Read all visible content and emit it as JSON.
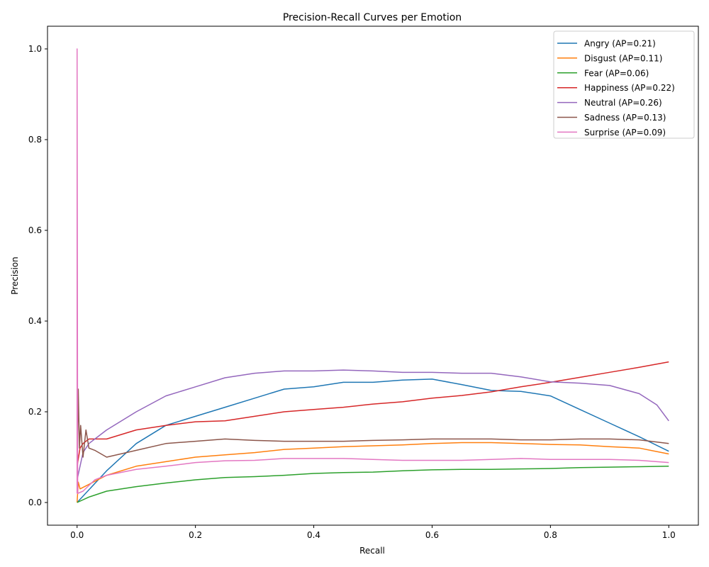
{
  "chart_data": {
    "type": "line",
    "title": "Precision-Recall Curves per Emotion",
    "xlabel": "Recall",
    "ylabel": "Precision",
    "xlim": [
      -0.05,
      1.05
    ],
    "ylim": [
      -0.05,
      1.05
    ],
    "xticks": [
      0.0,
      0.2,
      0.4,
      0.6,
      0.8,
      1.0
    ],
    "xtick_labels": [
      "0.0",
      "0.2",
      "0.4",
      "0.6",
      "0.8",
      "1.0"
    ],
    "yticks": [
      0.0,
      0.2,
      0.4,
      0.6,
      0.8,
      1.0
    ],
    "ytick_labels": [
      "0.0",
      "0.2",
      "0.4",
      "0.6",
      "0.8",
      "1.0"
    ],
    "grid": false,
    "legend_position": "top-right",
    "series": [
      {
        "name": "Angry (AP=0.21)",
        "color": "#1f77b4",
        "points": [
          [
            0.0,
            0.0
          ],
          [
            0.05,
            0.07
          ],
          [
            0.1,
            0.13
          ],
          [
            0.15,
            0.17
          ],
          [
            0.2,
            0.19
          ],
          [
            0.25,
            0.21
          ],
          [
            0.3,
            0.23
          ],
          [
            0.35,
            0.25
          ],
          [
            0.4,
            0.255
          ],
          [
            0.45,
            0.265
          ],
          [
            0.5,
            0.265
          ],
          [
            0.55,
            0.27
          ],
          [
            0.6,
            0.272
          ],
          [
            0.65,
            0.26
          ],
          [
            0.7,
            0.247
          ],
          [
            0.75,
            0.245
          ],
          [
            0.8,
            0.235
          ],
          [
            0.85,
            0.205
          ],
          [
            0.9,
            0.175
          ],
          [
            0.95,
            0.145
          ],
          [
            1.0,
            0.113
          ]
        ]
      },
      {
        "name": "Disgust (AP=0.11)",
        "color": "#ff7f0e",
        "points": [
          [
            0.0,
            0.0
          ],
          [
            0.002,
            0.045
          ],
          [
            0.005,
            0.03
          ],
          [
            0.02,
            0.04
          ],
          [
            0.05,
            0.06
          ],
          [
            0.1,
            0.08
          ],
          [
            0.15,
            0.09
          ],
          [
            0.2,
            0.1
          ],
          [
            0.25,
            0.105
          ],
          [
            0.3,
            0.11
          ],
          [
            0.35,
            0.117
          ],
          [
            0.4,
            0.12
          ],
          [
            0.45,
            0.123
          ],
          [
            0.5,
            0.125
          ],
          [
            0.55,
            0.127
          ],
          [
            0.6,
            0.13
          ],
          [
            0.65,
            0.132
          ],
          [
            0.7,
            0.132
          ],
          [
            0.75,
            0.13
          ],
          [
            0.8,
            0.128
          ],
          [
            0.85,
            0.127
          ],
          [
            0.9,
            0.123
          ],
          [
            0.95,
            0.12
          ],
          [
            1.0,
            0.107
          ]
        ]
      },
      {
        "name": "Fear (AP=0.06)",
        "color": "#2ca02c",
        "points": [
          [
            0.0,
            0.0
          ],
          [
            0.02,
            0.012
          ],
          [
            0.05,
            0.025
          ],
          [
            0.1,
            0.035
          ],
          [
            0.15,
            0.043
          ],
          [
            0.2,
            0.05
          ],
          [
            0.25,
            0.055
          ],
          [
            0.3,
            0.057
          ],
          [
            0.35,
            0.06
          ],
          [
            0.4,
            0.064
          ],
          [
            0.45,
            0.066
          ],
          [
            0.5,
            0.067
          ],
          [
            0.55,
            0.07
          ],
          [
            0.6,
            0.072
          ],
          [
            0.65,
            0.073
          ],
          [
            0.7,
            0.073
          ],
          [
            0.75,
            0.074
          ],
          [
            0.8,
            0.075
          ],
          [
            0.85,
            0.077
          ],
          [
            0.9,
            0.078
          ],
          [
            0.95,
            0.079
          ],
          [
            1.0,
            0.08
          ]
        ]
      },
      {
        "name": "Happiness (AP=0.22)",
        "color": "#d62728",
        "points": [
          [
            0.0,
            0.08
          ],
          [
            0.005,
            0.12
          ],
          [
            0.01,
            0.13
          ],
          [
            0.02,
            0.14
          ],
          [
            0.05,
            0.14
          ],
          [
            0.1,
            0.16
          ],
          [
            0.15,
            0.17
          ],
          [
            0.2,
            0.178
          ],
          [
            0.25,
            0.18
          ],
          [
            0.3,
            0.19
          ],
          [
            0.35,
            0.2
          ],
          [
            0.4,
            0.205
          ],
          [
            0.45,
            0.21
          ],
          [
            0.5,
            0.217
          ],
          [
            0.55,
            0.222
          ],
          [
            0.6,
            0.23
          ],
          [
            0.65,
            0.236
          ],
          [
            0.7,
            0.244
          ],
          [
            0.75,
            0.255
          ],
          [
            0.8,
            0.265
          ],
          [
            0.85,
            0.276
          ],
          [
            0.9,
            0.287
          ],
          [
            0.95,
            0.298
          ],
          [
            1.0,
            0.31
          ]
        ]
      },
      {
        "name": "Neutral (AP=0.26)",
        "color": "#9467bd",
        "points": [
          [
            0.0,
            0.05
          ],
          [
            0.01,
            0.11
          ],
          [
            0.02,
            0.13
          ],
          [
            0.05,
            0.16
          ],
          [
            0.1,
            0.2
          ],
          [
            0.15,
            0.235
          ],
          [
            0.2,
            0.255
          ],
          [
            0.25,
            0.275
          ],
          [
            0.3,
            0.285
          ],
          [
            0.35,
            0.29
          ],
          [
            0.4,
            0.29
          ],
          [
            0.45,
            0.292
          ],
          [
            0.5,
            0.29
          ],
          [
            0.55,
            0.287
          ],
          [
            0.6,
            0.287
          ],
          [
            0.65,
            0.285
          ],
          [
            0.7,
            0.285
          ],
          [
            0.75,
            0.277
          ],
          [
            0.8,
            0.266
          ],
          [
            0.85,
            0.263
          ],
          [
            0.9,
            0.258
          ],
          [
            0.95,
            0.24
          ],
          [
            0.98,
            0.215
          ],
          [
            1.0,
            0.18
          ]
        ]
      },
      {
        "name": "Sadness (AP=0.13)",
        "color": "#8c564b",
        "points": [
          [
            0.0,
            0.05
          ],
          [
            0.002,
            0.25
          ],
          [
            0.004,
            0.12
          ],
          [
            0.006,
            0.17
          ],
          [
            0.01,
            0.1
          ],
          [
            0.015,
            0.16
          ],
          [
            0.02,
            0.12
          ],
          [
            0.03,
            0.115
          ],
          [
            0.05,
            0.1
          ],
          [
            0.1,
            0.115
          ],
          [
            0.15,
            0.13
          ],
          [
            0.2,
            0.135
          ],
          [
            0.25,
            0.14
          ],
          [
            0.3,
            0.137
          ],
          [
            0.35,
            0.135
          ],
          [
            0.4,
            0.135
          ],
          [
            0.45,
            0.135
          ],
          [
            0.5,
            0.137
          ],
          [
            0.55,
            0.138
          ],
          [
            0.6,
            0.14
          ],
          [
            0.65,
            0.14
          ],
          [
            0.7,
            0.14
          ],
          [
            0.75,
            0.138
          ],
          [
            0.8,
            0.138
          ],
          [
            0.85,
            0.14
          ],
          [
            0.9,
            0.14
          ],
          [
            0.95,
            0.138
          ],
          [
            1.0,
            0.13
          ]
        ]
      },
      {
        "name": "Surprise (AP=0.09)",
        "color": "#e377c2",
        "points": [
          [
            0.0,
            0.02
          ],
          [
            0.0,
            1.0
          ],
          [
            0.001,
            0.02
          ],
          [
            0.01,
            0.025
          ],
          [
            0.03,
            0.05
          ],
          [
            0.05,
            0.06
          ],
          [
            0.1,
            0.073
          ],
          [
            0.15,
            0.08
          ],
          [
            0.2,
            0.088
          ],
          [
            0.25,
            0.092
          ],
          [
            0.3,
            0.093
          ],
          [
            0.35,
            0.097
          ],
          [
            0.4,
            0.097
          ],
          [
            0.45,
            0.097
          ],
          [
            0.5,
            0.095
          ],
          [
            0.55,
            0.093
          ],
          [
            0.6,
            0.093
          ],
          [
            0.65,
            0.093
          ],
          [
            0.7,
            0.095
          ],
          [
            0.75,
            0.097
          ],
          [
            0.8,
            0.095
          ],
          [
            0.85,
            0.095
          ],
          [
            0.9,
            0.095
          ],
          [
            0.95,
            0.093
          ],
          [
            1.0,
            0.088
          ]
        ]
      }
    ]
  }
}
